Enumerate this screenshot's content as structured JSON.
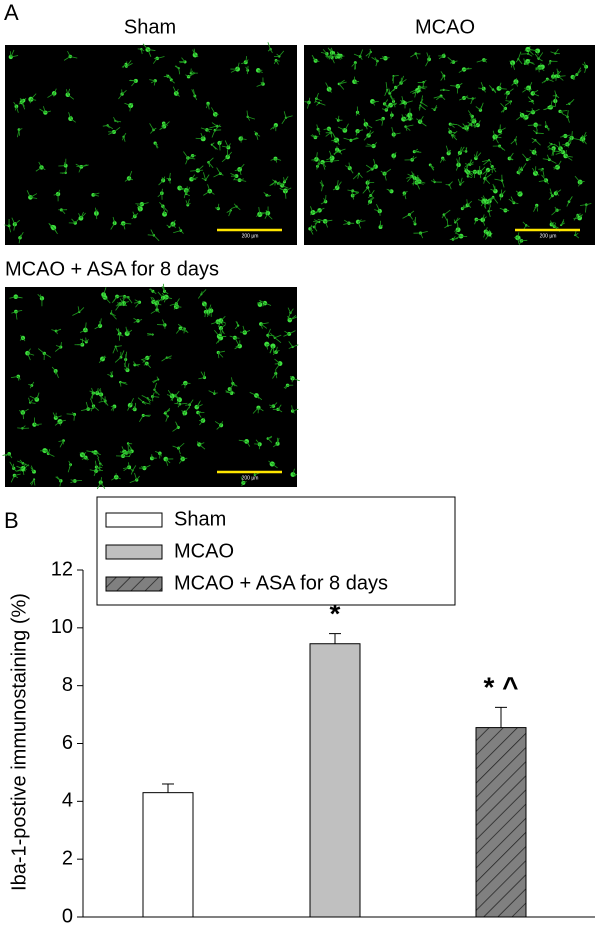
{
  "panel_a": {
    "label": "A",
    "images": [
      {
        "title": "Sham",
        "scale_bar": "200 µm"
      },
      {
        "title": "MCAO",
        "scale_bar": "200 µm"
      },
      {
        "title": "MCAO + ASA for 8 days",
        "scale_bar": "200 µm"
      }
    ]
  },
  "chart_data": {
    "type": "bar",
    "panel_label": "B",
    "y_label": "Iba-1-postive immunostaining (%)",
    "series": [
      {
        "name": "Sham",
        "color": "#ffffff",
        "values": [
          4.3
        ],
        "errors": [
          0.3
        ]
      },
      {
        "name": "MCAO",
        "color": "#c0c0c0",
        "values": [
          9.45
        ],
        "errors": [
          0.35
        ],
        "annotation": "*"
      },
      {
        "name": "MCAO + ASA for 8 days",
        "color": "#808080",
        "hatch": true,
        "values": [
          6.55
        ],
        "errors": [
          0.7
        ],
        "annotation": "* ^"
      }
    ],
    "ylim": [
      0,
      12
    ],
    "yticks": [
      0,
      2,
      4,
      6,
      8,
      10,
      12
    ]
  }
}
